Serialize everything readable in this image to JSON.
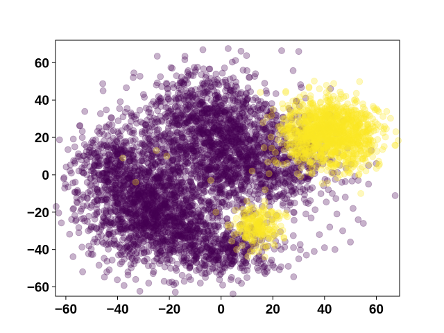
{
  "chart_data": {
    "type": "scatter",
    "title": "",
    "xlabel": "",
    "ylabel": "",
    "xlim": [
      -64,
      69
    ],
    "ylim": [
      -65,
      72
    ],
    "xticks": [
      -60,
      -40,
      -20,
      0,
      20,
      40,
      60
    ],
    "yticks": [
      -60,
      -40,
      -20,
      0,
      20,
      40,
      60
    ],
    "xtick_labels": [
      "−60",
      "−40",
      "−20",
      "0",
      "20",
      "40",
      "60"
    ],
    "ytick_labels": [
      "−60",
      "−40",
      "−20",
      "0",
      "20",
      "40",
      "60"
    ],
    "grid": false,
    "marker_alpha": 0.3,
    "series": [
      {
        "color": "#440154",
        "clusters": [
          {
            "center": [
              -25,
              -20
            ],
            "spread": [
              13,
              14
            ],
            "count": 1400
          },
          {
            "center": [
              -5,
              25
            ],
            "spread": [
              15,
              15
            ],
            "count": 1200
          },
          {
            "center": [
              15,
              5
            ],
            "spread": [
              14,
              12
            ],
            "count": 800
          },
          {
            "center": [
              -40,
              5
            ],
            "spread": [
              9,
              10
            ],
            "count": 400
          },
          {
            "center": [
              0,
              -40
            ],
            "spread": [
              12,
              7
            ],
            "count": 400
          }
        ],
        "outliers": [
          [
            30,
            66
          ],
          [
            -52,
            15
          ],
          [
            -50,
            12
          ],
          [
            -54,
            8
          ],
          [
            -55,
            2
          ],
          [
            -57,
            -18
          ],
          [
            -56,
            -24
          ],
          [
            -55,
            -31
          ],
          [
            -33,
            -56
          ],
          [
            -28,
            -58
          ],
          [
            -22,
            -57
          ],
          [
            -8,
            -58
          ],
          [
            10,
            -55
          ],
          [
            18,
            -50
          ],
          [
            26,
            -49
          ],
          [
            30,
            -45
          ],
          [
            33,
            -43
          ],
          [
            36,
            -41
          ],
          [
            40,
            -39
          ],
          [
            44,
            -40
          ],
          [
            50,
            -36
          ],
          [
            47,
            -30
          ],
          [
            53,
            -24
          ],
          [
            55,
            -26
          ],
          [
            51,
            -18
          ],
          [
            48,
            -12
          ],
          [
            43,
            -10
          ],
          [
            57,
            -5
          ],
          [
            53,
            -3
          ],
          [
            57,
            5
          ],
          [
            60,
            6
          ],
          [
            58,
            13
          ],
          [
            -30,
            43
          ],
          [
            -40,
            23
          ],
          [
            -47,
            22
          ],
          [
            -10,
            55
          ],
          [
            -25,
            48
          ],
          [
            -14,
            51
          ],
          [
            38,
            -32
          ],
          [
            42,
            -28
          ],
          [
            28,
            -20
          ],
          [
            22,
            -38
          ],
          [
            -36,
            -52
          ],
          [
            16,
            -45
          ]
        ]
      },
      {
        "color": "#fde725",
        "clusters": [
          {
            "center": [
              42,
              22
            ],
            "spread": [
              9,
              9
            ],
            "count": 1200
          },
          {
            "center": [
              14,
              -28
            ],
            "spread": [
              4.5,
              6
            ],
            "count": 200
          }
        ],
        "outliers": [
          [
            -33,
            -4
          ],
          [
            -38,
            9
          ],
          [
            -21,
            10
          ],
          [
            -25,
            13
          ],
          [
            -4,
            -3
          ],
          [
            -2,
            -20
          ],
          [
            3,
            -28
          ],
          [
            8,
            -22
          ],
          [
            10,
            -14
          ],
          [
            17,
            -8
          ],
          [
            21,
            12
          ],
          [
            34,
            47
          ],
          [
            38,
            46
          ],
          [
            29,
            40
          ],
          [
            25,
            44
          ],
          [
            56,
            2
          ],
          [
            54,
            -10
          ],
          [
            24,
            30
          ],
          [
            30,
            34
          ],
          [
            22,
            6
          ],
          [
            46,
            0
          ],
          [
            57,
            18
          ],
          [
            55,
            30
          ],
          [
            60,
            24
          ],
          [
            6,
            -40
          ],
          [
            17,
            -38
          ],
          [
            5,
            -32
          ],
          [
            12,
            2
          ]
        ]
      }
    ]
  }
}
